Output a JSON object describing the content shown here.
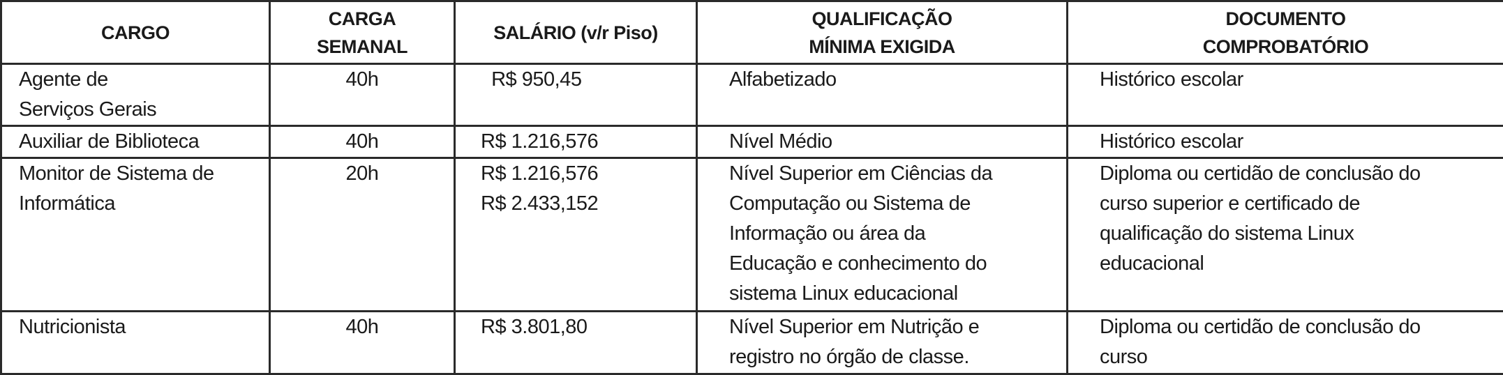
{
  "headers": [
    [
      "CARGO"
    ],
    [
      "CARGA",
      "SEMANAL"
    ],
    [
      "SALÁRIO (v/r Piso)"
    ],
    [
      "QUALIFICAÇÃO",
      "MÍNIMA EXIGIDA"
    ],
    [
      "DOCUMENTO",
      "COMPROBATÓRIO"
    ]
  ],
  "rows": [
    {
      "cargo": [
        "Agente de",
        "Serviços Gerais"
      ],
      "carga": [
        "40h"
      ],
      "salario": [
        "  R$ 950,45"
      ],
      "qualificacao": [
        "Alfabetizado"
      ],
      "documento": [
        "Histórico escolar"
      ]
    },
    {
      "cargo": [
        "Auxiliar de Biblioteca"
      ],
      "carga": [
        "40h"
      ],
      "salario": [
        "R$ 1.216,576"
      ],
      "qualificacao": [
        "Nível Médio"
      ],
      "documento": [
        "Histórico escolar"
      ]
    },
    {
      "cargo": [
        "Monitor de Sistema de",
        "Informática"
      ],
      "carga": [
        "20h"
      ],
      "salario": [
        "R$ 1.216,576",
        "R$ 2.433,152"
      ],
      "qualificacao": [
        "Nível Superior em Ciências da",
        "Computação ou Sistema de",
        "Informação ou área da",
        "Educação e conhecimento do",
        "sistema Linux educacional"
      ],
      "documento": [
        "Diploma ou certidão de conclusão do",
        "curso superior e certificado de",
        "qualificação do sistema Linux",
        "educacional"
      ]
    },
    {
      "cargo": [
        "Nutricionista"
      ],
      "carga": [
        "40h"
      ],
      "salario": [
        "R$ 3.801,80"
      ],
      "qualificacao": [
        "Nível Superior em Nutrição e",
        "registro no órgão de classe."
      ],
      "documento": [
        "Diploma ou certidão de conclusão do",
        "curso"
      ]
    }
  ]
}
